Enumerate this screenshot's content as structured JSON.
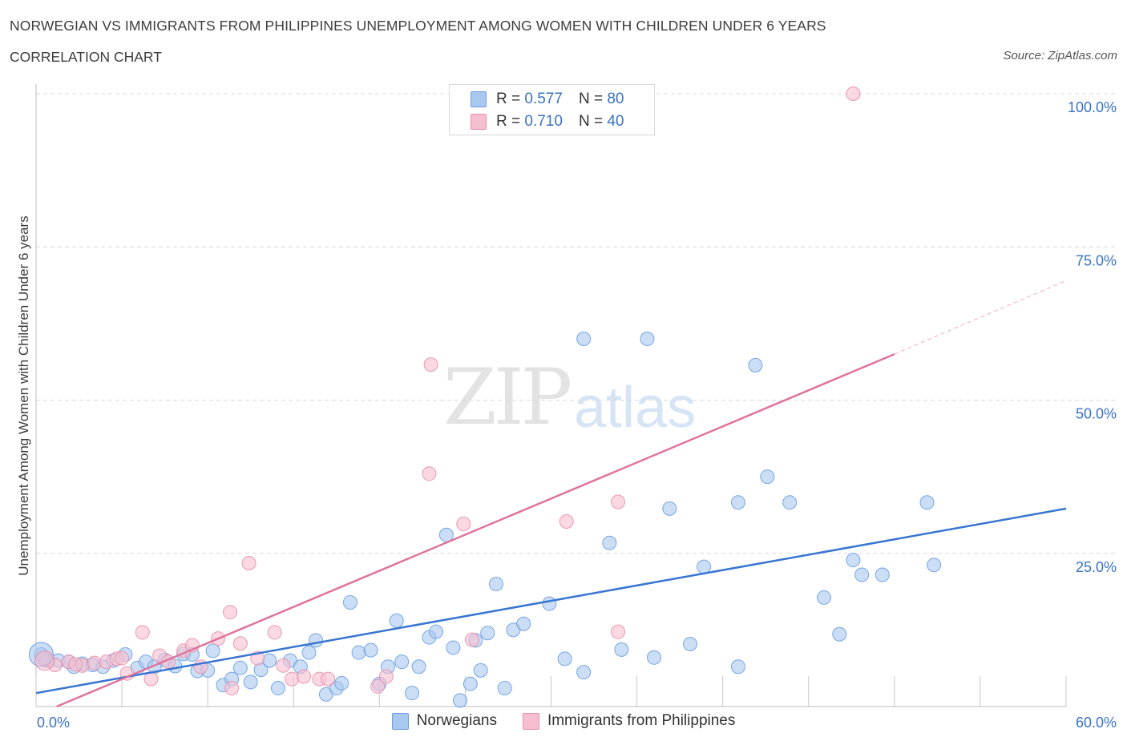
{
  "header": {
    "title": "NORWEGIAN VS IMMIGRANTS FROM PHILIPPINES UNEMPLOYMENT AMONG WOMEN WITH CHILDREN UNDER 6 YEARS",
    "subtitle": "CORRELATION CHART",
    "source": "Source: ZipAtlas.com"
  },
  "watermark": {
    "zip": "ZIP",
    "atlas": "atlas"
  },
  "legend": {
    "r_label": "R =",
    "n_label": "N =",
    "series": [
      {
        "r": "0.577",
        "n": "80"
      },
      {
        "r": "0.710",
        "n": "40"
      }
    ]
  },
  "bottom_legend": [
    "Norwegians",
    "Immigrants from Philippines"
  ],
  "colors": {
    "blue_fill": "#a9c8ef",
    "blue_stroke": "#6b9ee0",
    "blue_line": "#3875d2",
    "pink_fill": "#f6bfd0",
    "pink_stroke": "#e88fab",
    "pink_line": "#e0739b",
    "tick_text": "#3a72c4",
    "grid": "#d9d9d9"
  },
  "chart_data": {
    "type": "scatter",
    "title": "NORWEGIAN VS IMMIGRANTS FROM PHILIPPINES UNEMPLOYMENT AMONG WOMEN WITH CHILDREN UNDER 6 YEARS",
    "xlabel": "",
    "ylabel": "Unemployment Among Women with Children Under 6 years",
    "xlim": [
      0,
      60
    ],
    "ylim": [
      0,
      100
    ],
    "x_tick_labels": [
      "0.0%",
      "60.0%"
    ],
    "y_tick_values": [
      25,
      50,
      75,
      100
    ],
    "y_tick_labels": [
      "25.0%",
      "50.0%",
      "75.0%",
      "100.0%"
    ],
    "grid": true,
    "legend_position": "top-center",
    "series": [
      {
        "name": "Norwegians",
        "r": 0.577,
        "n": 80,
        "trend": {
          "x": [
            0,
            60
          ],
          "y": [
            2.2,
            32.3
          ],
          "dashed_to": 60
        },
        "points": [
          [
            0.3,
            8.5
          ],
          [
            0.7,
            7.5
          ],
          [
            1.3,
            7.5
          ],
          [
            2.2,
            6.5
          ],
          [
            2.7,
            7.0
          ],
          [
            3.3,
            6.8
          ],
          [
            3.9,
            6.5
          ],
          [
            4.5,
            7.5
          ],
          [
            5.2,
            8.5
          ],
          [
            5.9,
            6.3
          ],
          [
            6.4,
            7.3
          ],
          [
            6.9,
            6.5
          ],
          [
            7.5,
            7.6
          ],
          [
            8.1,
            6.6
          ],
          [
            8.6,
            8.6
          ],
          [
            9.1,
            8.5
          ],
          [
            9.4,
            5.8
          ],
          [
            10.0,
            5.9
          ],
          [
            10.3,
            9.1
          ],
          [
            10.9,
            3.5
          ],
          [
            11.4,
            4.5
          ],
          [
            11.9,
            6.3
          ],
          [
            12.5,
            4.0
          ],
          [
            13.1,
            6.0
          ],
          [
            13.6,
            7.5
          ],
          [
            14.1,
            3.0
          ],
          [
            14.8,
            7.5
          ],
          [
            15.4,
            6.5
          ],
          [
            15.9,
            8.8
          ],
          [
            16.3,
            10.8
          ],
          [
            16.9,
            2.0
          ],
          [
            17.5,
            3.0
          ],
          [
            17.8,
            3.8
          ],
          [
            18.3,
            17.0
          ],
          [
            18.8,
            8.8
          ],
          [
            19.5,
            9.2
          ],
          [
            20.0,
            3.7
          ],
          [
            20.5,
            6.5
          ],
          [
            21.0,
            14.0
          ],
          [
            21.3,
            7.3
          ],
          [
            21.9,
            2.2
          ],
          [
            22.3,
            6.5
          ],
          [
            22.9,
            11.3
          ],
          [
            23.3,
            12.2
          ],
          [
            23.9,
            28.0
          ],
          [
            24.3,
            9.6
          ],
          [
            24.7,
            1.0
          ],
          [
            25.3,
            3.7
          ],
          [
            25.6,
            10.8
          ],
          [
            25.9,
            5.9
          ],
          [
            26.3,
            12.0
          ],
          [
            26.8,
            20.0
          ],
          [
            27.3,
            3.0
          ],
          [
            27.8,
            12.5
          ],
          [
            28.4,
            13.5
          ],
          [
            29.9,
            16.8
          ],
          [
            30.8,
            7.8
          ],
          [
            31.9,
            5.6
          ],
          [
            31.9,
            60.0
          ],
          [
            33.4,
            26.7
          ],
          [
            34.1,
            9.3
          ],
          [
            35.6,
            60.0
          ],
          [
            36.0,
            8.0
          ],
          [
            36.9,
            32.3
          ],
          [
            38.1,
            10.2
          ],
          [
            38.9,
            22.8
          ],
          [
            40.9,
            6.5
          ],
          [
            40.9,
            33.3
          ],
          [
            41.9,
            55.7
          ],
          [
            42.6,
            37.5
          ],
          [
            43.9,
            33.3
          ],
          [
            45.9,
            17.8
          ],
          [
            46.8,
            11.8
          ],
          [
            47.6,
            23.9
          ],
          [
            48.1,
            21.5
          ],
          [
            49.3,
            21.5
          ],
          [
            51.9,
            33.3
          ],
          [
            52.3,
            23.1
          ],
          [
            0.5,
            7.7
          ],
          [
            1.9,
            7.3
          ]
        ]
      },
      {
        "name": "Immigrants from Philippines",
        "r": 0.71,
        "n": 40,
        "trend": {
          "x": [
            1.2,
            50
          ],
          "y": [
            0,
            57.5
          ],
          "dashed_to": 60,
          "dashed_end_y": 69.5
        },
        "points": [
          [
            0.6,
            7.5
          ],
          [
            1.1,
            6.8
          ],
          [
            1.9,
            7.3
          ],
          [
            2.7,
            6.7
          ],
          [
            3.4,
            7.1
          ],
          [
            4.1,
            7.3
          ],
          [
            4.7,
            7.8
          ],
          [
            5.3,
            5.4
          ],
          [
            6.2,
            12.1
          ],
          [
            6.7,
            4.5
          ],
          [
            7.2,
            8.3
          ],
          [
            7.7,
            7.3
          ],
          [
            8.6,
            9.1
          ],
          [
            9.1,
            10.0
          ],
          [
            9.6,
            6.5
          ],
          [
            10.6,
            11.1
          ],
          [
            11.3,
            15.4
          ],
          [
            11.4,
            3.0
          ],
          [
            11.9,
            10.3
          ],
          [
            12.4,
            23.4
          ],
          [
            12.9,
            7.9
          ],
          [
            13.9,
            12.1
          ],
          [
            14.4,
            6.7
          ],
          [
            14.9,
            4.5
          ],
          [
            15.6,
            4.9
          ],
          [
            16.5,
            4.5
          ],
          [
            17.0,
            4.5
          ],
          [
            19.9,
            3.3
          ],
          [
            20.4,
            4.9
          ],
          [
            22.9,
            38.0
          ],
          [
            23.0,
            55.8
          ],
          [
            24.9,
            29.8
          ],
          [
            25.4,
            10.9
          ],
          [
            30.9,
            30.2
          ],
          [
            33.9,
            33.4
          ],
          [
            33.9,
            12.2
          ],
          [
            47.6,
            100.0
          ],
          [
            0.4,
            7.9
          ],
          [
            2.3,
            6.9
          ],
          [
            5.0,
            7.9
          ]
        ]
      }
    ]
  }
}
